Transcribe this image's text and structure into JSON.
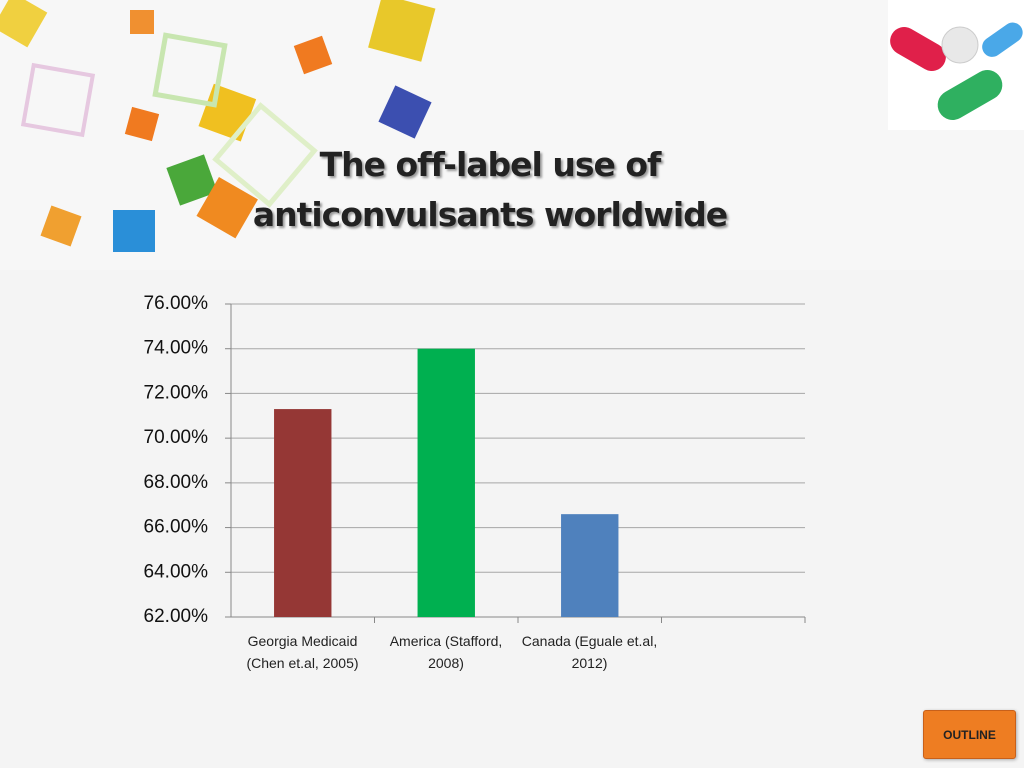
{
  "chart_data": {
    "type": "bar",
    "title": "The off-label use of anticonvulsants worldwide",
    "categories": [
      "Georgia Medicaid (Chen et.al, 2005)",
      "America (Stafford, 2008)",
      "Canada (Eguale et.al, 2012)",
      null
    ],
    "values": [
      71.3,
      74.0,
      66.6,
      null
    ],
    "colors": [
      "#953735",
      "#00b050",
      "#4f81bd",
      null
    ],
    "ylim": [
      62,
      76
    ],
    "yticks": [
      {
        "value": 62,
        "label": "62.00%"
      },
      {
        "value": 64,
        "label": "64.00%"
      },
      {
        "value": 66,
        "label": "66.00%"
      },
      {
        "value": 68,
        "label": "68.00%"
      },
      {
        "value": 70,
        "label": "70.00%"
      },
      {
        "value": 72,
        "label": "72.00%"
      },
      {
        "value": 74,
        "label": "74.00%"
      },
      {
        "value": 76,
        "label": "76.00%"
      }
    ],
    "grid": true
  },
  "button": {
    "label": "OUTLINE"
  }
}
